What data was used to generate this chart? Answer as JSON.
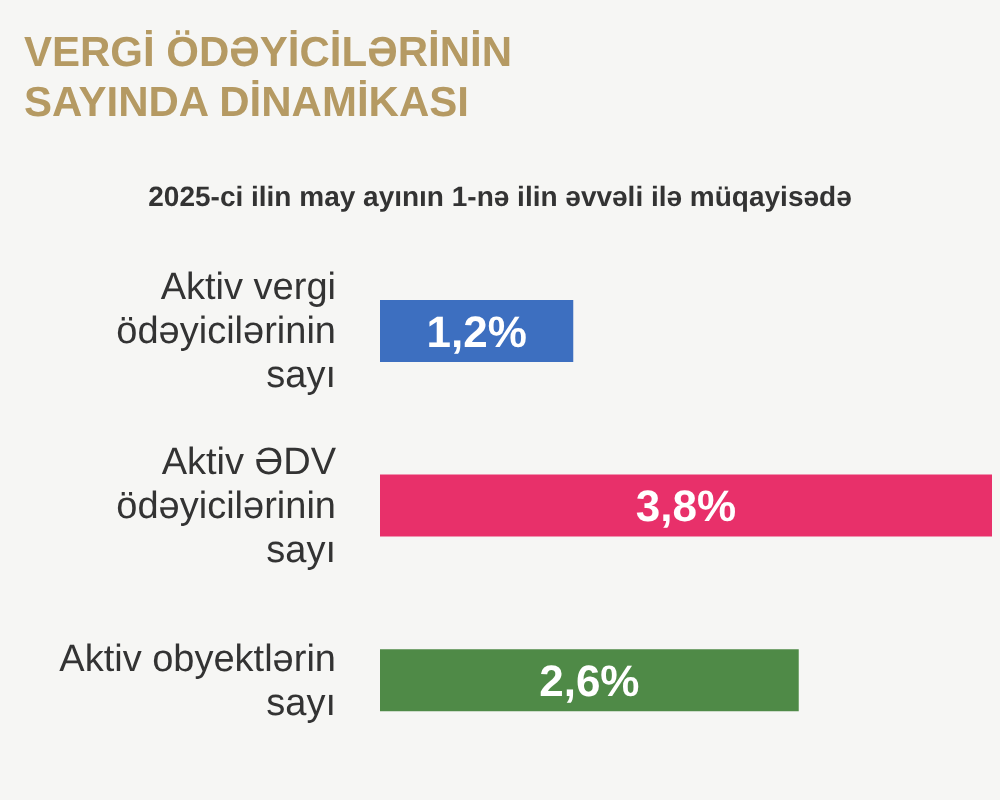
{
  "chart_data": {
    "type": "bar",
    "orientation": "horizontal",
    "title": "VERGİ ÖDƏYİCİLƏRİNİN SAYINDA DİNAMİKASI",
    "subtitle": "2025-ci ilin may ayının 1-nə ilin əvvəli ilə müqayisədə",
    "categories": [
      "Aktiv vergi ödəyicilərinin sayı",
      "Aktiv ƏDV ödəyicilərinin sayı",
      "Aktiv obyektlərin sayı"
    ],
    "values": [
      1.2,
      3.8,
      2.6
    ],
    "colors": [
      "#3d6fc0",
      "#e8306a",
      "#4f8a47"
    ],
    "value_labels": [
      "1,2%",
      "3,8%",
      "2,6%"
    ]
  }
}
